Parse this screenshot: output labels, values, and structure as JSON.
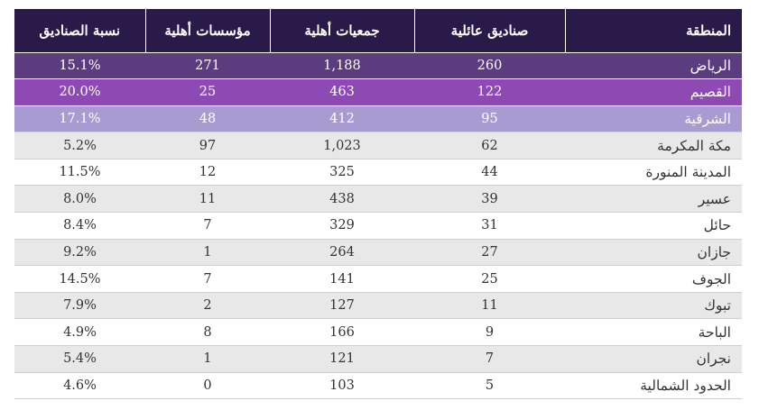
{
  "table": {
    "headers": {
      "region": "المنطقة",
      "family_funds": "صناديق عائلية",
      "associations": "جمعيات أهلية",
      "foundations": "مؤسسات أهلية",
      "fund_ratio": "نسبة الصناديق"
    },
    "rows": [
      {
        "region": "الرياض",
        "family_funds": "260",
        "associations": "1,188",
        "foundations": "271",
        "fund_ratio": "15.1%"
      },
      {
        "region": "القصيم",
        "family_funds": "122",
        "associations": "463",
        "foundations": "25",
        "fund_ratio": "20.0%"
      },
      {
        "region": "الشرقية",
        "family_funds": "95",
        "associations": "412",
        "foundations": "48",
        "fund_ratio": "17.1%"
      },
      {
        "region": "مكة المكرمة",
        "family_funds": "62",
        "associations": "1,023",
        "foundations": "97",
        "fund_ratio": "5.2%"
      },
      {
        "region": "المدينة المنورة",
        "family_funds": "44",
        "associations": "325",
        "foundations": "12",
        "fund_ratio": "11.5%"
      },
      {
        "region": "عسير",
        "family_funds": "39",
        "associations": "438",
        "foundations": "11",
        "fund_ratio": "8.0%"
      },
      {
        "region": "حائل",
        "family_funds": "31",
        "associations": "329",
        "foundations": "7",
        "fund_ratio": "8.4%"
      },
      {
        "region": "جازان",
        "family_funds": "27",
        "associations": "264",
        "foundations": "1",
        "fund_ratio": "9.2%"
      },
      {
        "region": "الجوف",
        "family_funds": "25",
        "associations": "141",
        "foundations": "7",
        "fund_ratio": "14.5%"
      },
      {
        "region": "تبوك",
        "family_funds": "11",
        "associations": "127",
        "foundations": "2",
        "fund_ratio": "7.9%"
      },
      {
        "region": "الباحة",
        "family_funds": "9",
        "associations": "166",
        "foundations": "8",
        "fund_ratio": "4.9%"
      },
      {
        "region": "نجران",
        "family_funds": "7",
        "associations": "121",
        "foundations": "1",
        "fund_ratio": "5.4%"
      },
      {
        "region": "الحدود الشمالية",
        "family_funds": "5",
        "associations": "103",
        "foundations": "0",
        "fund_ratio": "4.6%"
      }
    ]
  },
  "colors": {
    "header_bg": "#2a1a4a",
    "highlight_1": "#5b3d7f",
    "highlight_2": "#8d4ab3",
    "highlight_3": "#a79bd2",
    "stripe": "#e8e8e8"
  }
}
